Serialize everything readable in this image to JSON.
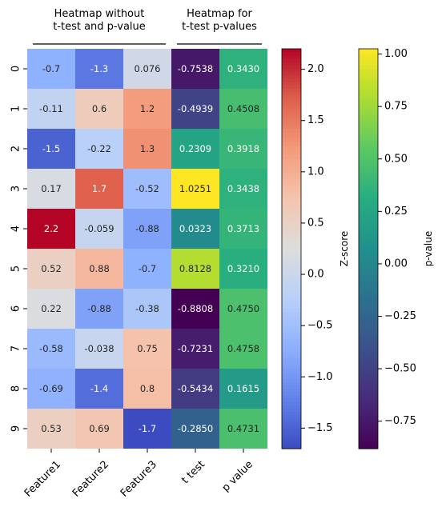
{
  "chart_data": {
    "type": "heatmap",
    "rows": [
      "0",
      "1",
      "2",
      "3",
      "4",
      "5",
      "6",
      "7",
      "8",
      "9"
    ],
    "columns": [
      "Feature1",
      "Feature2",
      "Feature3",
      "t test",
      "p value"
    ],
    "group_headers": [
      {
        "label_lines": [
          "Heatmap without",
          "t-test and p-value"
        ]
      },
      {
        "label_lines": [
          "Heatmap for",
          "t-test p-values"
        ]
      }
    ],
    "zscore_values": [
      [
        -0.7,
        -1.3,
        0.076
      ],
      [
        -0.11,
        0.6,
        1.2
      ],
      [
        -1.5,
        -0.22,
        1.3
      ],
      [
        0.17,
        1.7,
        -0.52
      ],
      [
        2.2,
        -0.059,
        -0.88
      ],
      [
        0.52,
        0.88,
        -0.7
      ],
      [
        0.22,
        -0.88,
        -0.38
      ],
      [
        -0.58,
        -0.038,
        0.75
      ],
      [
        -0.69,
        -1.4,
        0.8
      ],
      [
        0.53,
        0.69,
        -1.7
      ]
    ],
    "zscore_labels": [
      [
        "-0.7",
        "-1.3",
        "0.076"
      ],
      [
        "-0.11",
        "0.6",
        "1.2"
      ],
      [
        "-1.5",
        "-0.22",
        "1.3"
      ],
      [
        "0.17",
        "1.7",
        "-0.52"
      ],
      [
        "2.2",
        "-0.059",
        "-0.88"
      ],
      [
        "0.52",
        "0.88",
        "-0.7"
      ],
      [
        "0.22",
        "-0.88",
        "-0.38"
      ],
      [
        "-0.58",
        "-0.038",
        "0.75"
      ],
      [
        "-0.69",
        "-1.4",
        "0.8"
      ],
      [
        "0.53",
        "0.69",
        "-1.7"
      ]
    ],
    "stat_values": [
      [
        -0.7538,
        0.343
      ],
      [
        -0.4939,
        0.4508
      ],
      [
        0.2309,
        0.3918
      ],
      [
        1.0251,
        0.3438
      ],
      [
        0.0323,
        0.3713
      ],
      [
        0.8128,
        0.321
      ],
      [
        -0.8808,
        0.475
      ],
      [
        -0.7231,
        0.4758
      ],
      [
        -0.5434,
        0.1615
      ],
      [
        -0.285,
        0.4731
      ]
    ],
    "stat_labels": [
      [
        "-0.7538",
        "0.3430"
      ],
      [
        "-0.4939",
        "0.4508"
      ],
      [
        "0.2309",
        "0.3918"
      ],
      [
        "1.0251",
        "0.3438"
      ],
      [
        "0.0323",
        "0.3713"
      ],
      [
        "0.8128",
        "0.3210"
      ],
      [
        "-0.8808",
        "0.4750"
      ],
      [
        "-0.7231",
        "0.4758"
      ],
      [
        "-0.5434",
        "0.1615"
      ],
      [
        "-0.2850",
        "0.4731"
      ]
    ],
    "colorbars": [
      {
        "label": "Z-score",
        "colormap": "coolwarm",
        "range": [
          -1.7,
          2.2
        ],
        "ticks": [
          2.0,
          1.5,
          1.0,
          0.5,
          0.0,
          -0.5,
          -1.0,
          -1.5
        ],
        "tick_labels": [
          "2.0",
          "1.5",
          "1.0",
          "0.5",
          "0.0",
          "−0.5",
          "−1.0",
          "−1.5"
        ]
      },
      {
        "label": "p-value",
        "colormap": "viridis",
        "range": [
          -0.8808,
          1.0251
        ],
        "ticks": [
          1.0,
          0.75,
          0.5,
          0.25,
          0.0,
          -0.25,
          -0.5,
          -0.75
        ],
        "tick_labels": [
          "1.00",
          "0.75",
          "0.50",
          "0.25",
          "0.00",
          "−0.25",
          "−0.50",
          "−0.75"
        ]
      }
    ]
  }
}
